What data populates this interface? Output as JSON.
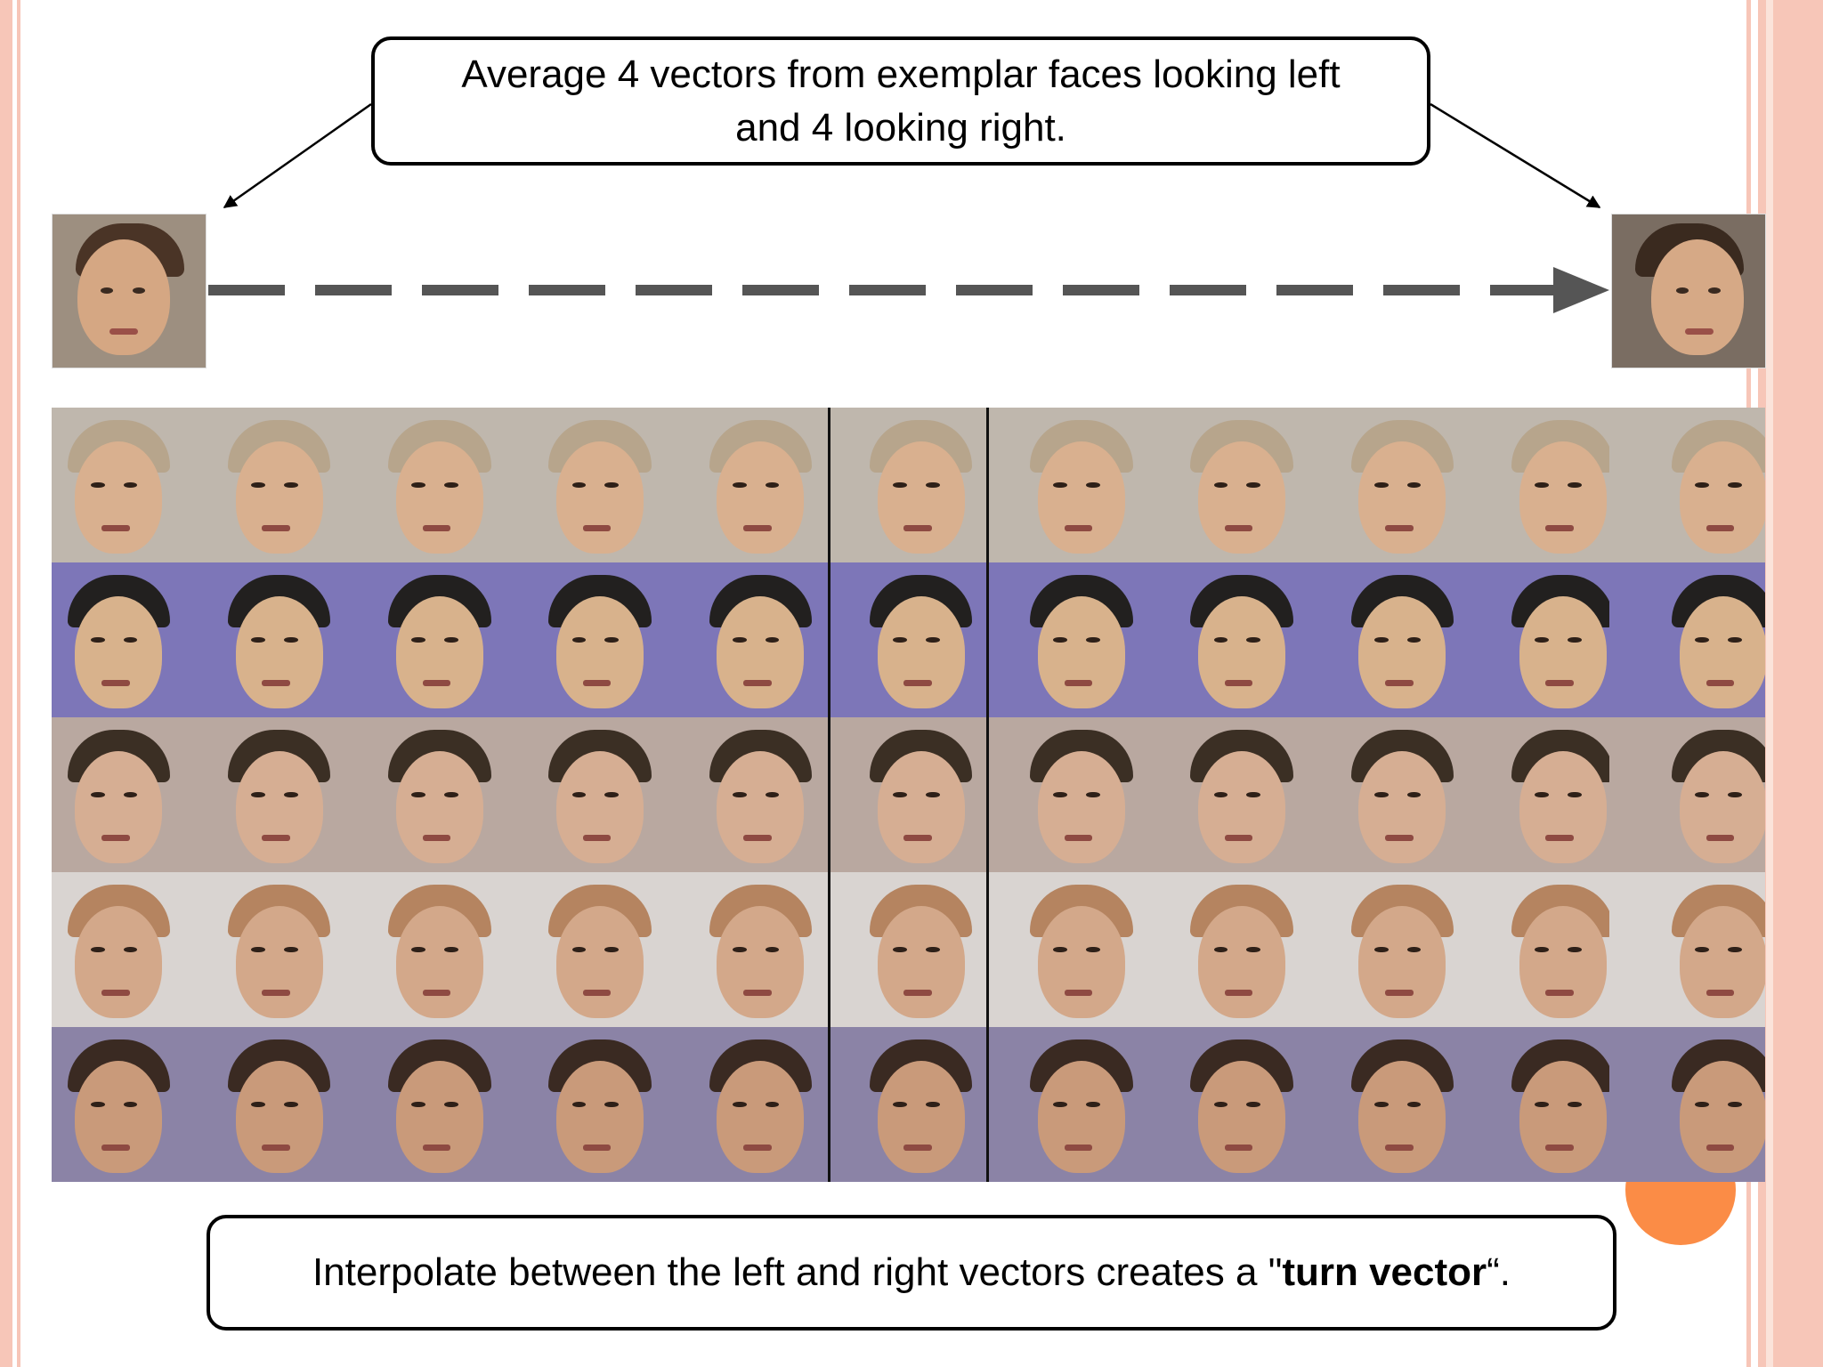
{
  "callouts": {
    "top": "Average 4 vectors from exemplar faces looking left and 4 looking right.",
    "bottom_prefix": "Interpolate between the left and right vectors creates a \"",
    "bottom_bold": "turn vector",
    "bottom_suffix": "“."
  },
  "colors": {
    "border": "#f7c6b8",
    "accent_circle": "#fb8c46"
  },
  "icons": [
    "dashed-arrow-icon",
    "callout-arrow-icon"
  ],
  "face_grid": {
    "rows": 5,
    "columns": 11,
    "row_palettes": [
      {
        "bg": "#bfb7ad",
        "skin": "#d9b08f",
        "hair": "#b7a58c"
      },
      {
        "bg": "#7d76b8",
        "skin": "#d8b28c",
        "hair": "#22201f"
      },
      {
        "bg": "#b9a8a0",
        "skin": "#d6ae93",
        "hair": "#3b2f24"
      },
      {
        "bg": "#d9d4d1",
        "skin": "#d3a88a",
        "hair": "#b58460"
      },
      {
        "bg": "#8b83a6",
        "skin": "#c99a7a",
        "hair": "#3a2a22"
      }
    ]
  }
}
